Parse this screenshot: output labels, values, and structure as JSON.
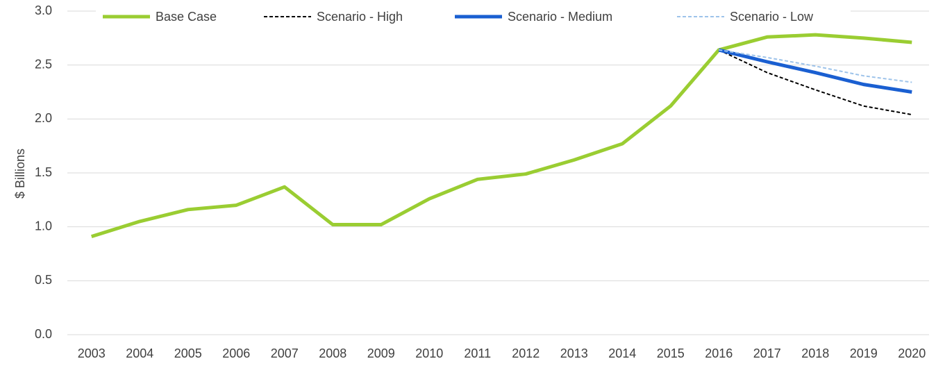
{
  "chart_data": {
    "type": "line",
    "y_label": "$ Billions",
    "categories": [
      "2003",
      "2004",
      "2005",
      "2006",
      "2007",
      "2008",
      "2009",
      "2010",
      "2011",
      "2012",
      "2013",
      "2014",
      "2015",
      "2016",
      "2017",
      "2018",
      "2019",
      "2020"
    ],
    "series": [
      {
        "name": "Base Case",
        "color": "#9acd32",
        "width": 5,
        "dash": "solid",
        "values": [
          0.91,
          1.05,
          1.16,
          1.2,
          1.37,
          1.02,
          1.02,
          1.26,
          1.44,
          1.49,
          1.62,
          1.77,
          2.12,
          2.64,
          2.76,
          2.78,
          2.75,
          2.71
        ]
      },
      {
        "name": "Scenario - High",
        "color": "#000000",
        "width": 2,
        "dash": "dashed",
        "values": [
          null,
          null,
          null,
          null,
          null,
          null,
          null,
          null,
          null,
          null,
          null,
          null,
          null,
          2.64,
          2.43,
          2.27,
          2.12,
          2.04
        ]
      },
      {
        "name": "Scenario - Medium",
        "color": "#1a5fd1",
        "width": 5,
        "dash": "solid",
        "values": [
          null,
          null,
          null,
          null,
          null,
          null,
          null,
          null,
          null,
          null,
          null,
          null,
          null,
          2.64,
          2.53,
          2.43,
          2.32,
          2.25
        ]
      },
      {
        "name": "Scenario - Low",
        "color": "#9dc3ea",
        "width": 2,
        "dash": "dashed",
        "values": [
          null,
          null,
          null,
          null,
          null,
          null,
          null,
          null,
          null,
          null,
          null,
          null,
          null,
          2.64,
          2.57,
          2.49,
          2.4,
          2.34
        ]
      }
    ],
    "ylim": [
      0,
      3
    ],
    "yticks": [
      {
        "value": 0,
        "label": "0.0"
      },
      {
        "value": 0.5,
        "label": "0.5"
      },
      {
        "value": 1,
        "label": "1.0"
      },
      {
        "value": 1.5,
        "label": "1.5"
      },
      {
        "value": 2,
        "label": "2.0"
      },
      {
        "value": 2.5,
        "label": "2.5"
      },
      {
        "value": 3,
        "label": "3.0"
      }
    ],
    "grid": true,
    "legend": "top"
  }
}
